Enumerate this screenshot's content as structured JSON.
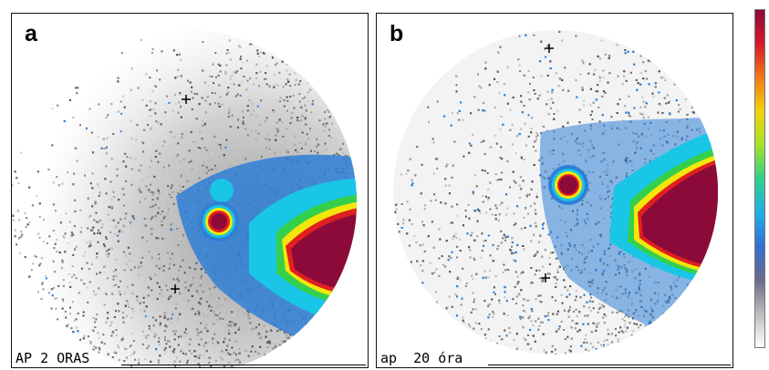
{
  "panels": [
    {
      "letter": "a",
      "caption": "AP 2 ORAS"
    },
    {
      "letter": "b",
      "caption": "ap  20 óra"
    }
  ],
  "colors": {
    "saturated": "#8b0a3a",
    "red": "#e02020",
    "orange": "#f39c12",
    "yellow": "#f4e60a",
    "green": "#35d04b",
    "cyan": "#19c6e6",
    "blue": "#2f7fd6",
    "gray": "#8a8a8a",
    "background": "#ffffff"
  },
  "colorbar": {
    "stops": [
      "#8b0a3a",
      "#d5172a",
      "#f07a17",
      "#f4d20c",
      "#a5e12a",
      "#2fd08a",
      "#1fb0e8",
      "#3470d2",
      "#6a6a8a",
      "#bdbdbd",
      "#ffffff"
    ]
  }
}
